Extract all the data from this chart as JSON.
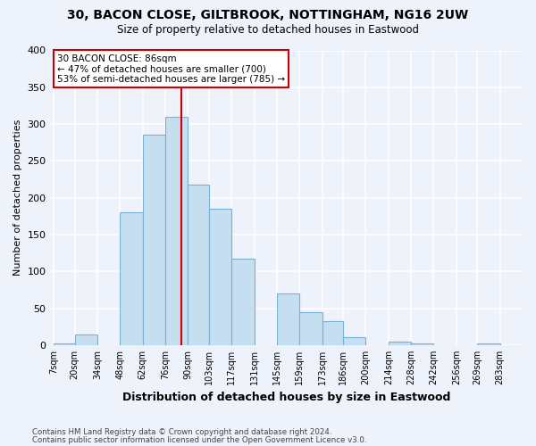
{
  "title_line1": "30, BACON CLOSE, GILTBROOK, NOTTINGHAM, NG16 2UW",
  "title_line2": "Size of property relative to detached houses in Eastwood",
  "xlabel": "Distribution of detached houses by size in Eastwood",
  "ylabel": "Number of detached properties",
  "bar_color": "#c5dff0",
  "bar_edgecolor": "#7ab0d4",
  "vline_x": 86,
  "vline_color": "#cc0000",
  "annotation_title": "30 BACON CLOSE: 86sqm",
  "annotation_line2": "← 47% of detached houses are smaller (700)",
  "annotation_line3": "53% of semi-detached houses are larger (785) →",
  "annotation_box_edgecolor": "#cc0000",
  "annotation_box_facecolor": "#ffffff",
  "footnote1": "Contains HM Land Registry data © Crown copyright and database right 2024.",
  "footnote2": "Contains public sector information licensed under the Open Government Licence v3.0.",
  "bin_edges": [
    7,
    20,
    34,
    48,
    62,
    76,
    90,
    103,
    117,
    131,
    145,
    159,
    173,
    186,
    200,
    214,
    228,
    242,
    256,
    269,
    283
  ],
  "bin_labels": [
    "7sqm",
    "20sqm",
    "34sqm",
    "48sqm",
    "62sqm",
    "76sqm",
    "90sqm",
    "103sqm",
    "117sqm",
    "131sqm",
    "145sqm",
    "159sqm",
    "173sqm",
    "186sqm",
    "200sqm",
    "214sqm",
    "228sqm",
    "242sqm",
    "256sqm",
    "269sqm",
    "283sqm"
  ],
  "bar_heights": [
    2,
    15,
    0,
    180,
    285,
    310,
    218,
    185,
    117,
    0,
    70,
    45,
    32,
    11,
    0,
    5,
    2,
    0,
    0,
    2
  ],
  "ylim": [
    0,
    400
  ],
  "yticks": [
    0,
    50,
    100,
    150,
    200,
    250,
    300,
    350,
    400
  ],
  "background_color": "#edf2fb",
  "grid_color": "#ffffff"
}
